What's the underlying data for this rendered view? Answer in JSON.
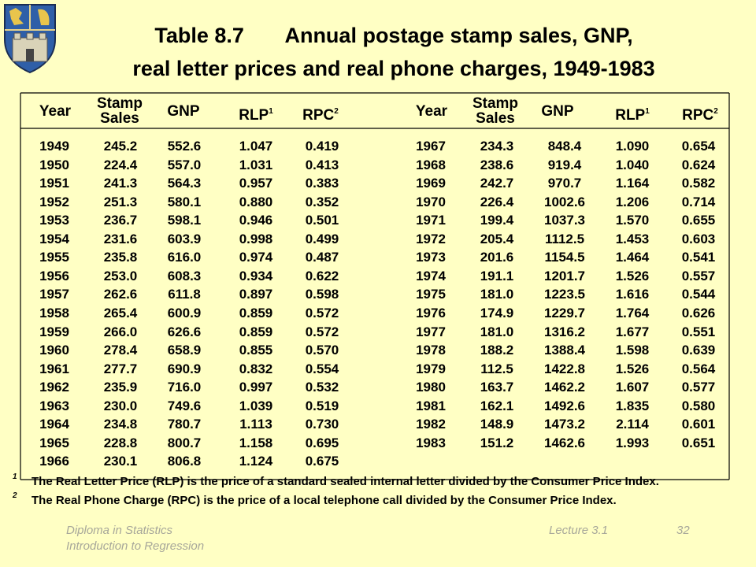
{
  "title_line1": "Table 8.7       Annual postage stamp sales, GNP,",
  "title_line2": "real letter prices and real phone charges, 1949-1983",
  "headers": {
    "year": "Year",
    "stamp1": "Stamp",
    "stamp2": "Sales",
    "gnp": "GNP",
    "rlp": "RLP",
    "rlp_sup": "1",
    "rpc": "RPC",
    "rpc_sup": "2"
  },
  "left_rows": [
    [
      "1949",
      "245.2",
      "552.6",
      "1.047",
      "0.419"
    ],
    [
      "1950",
      "224.4",
      "557.0",
      "1.031",
      "0.413"
    ],
    [
      "1951",
      "241.3",
      "564.3",
      "0.957",
      "0.383"
    ],
    [
      "1952",
      "251.3",
      "580.1",
      "0.880",
      "0.352"
    ],
    [
      "1953",
      "236.7",
      "598.1",
      "0.946",
      "0.501"
    ],
    [
      "1954",
      "231.6",
      "603.9",
      "0.998",
      "0.499"
    ],
    [
      "1955",
      "235.8",
      "616.0",
      "0.974",
      "0.487"
    ],
    [
      "1956",
      "253.0",
      "608.3",
      "0.934",
      "0.622"
    ],
    [
      "1957",
      "262.6",
      "611.8",
      "0.897",
      "0.598"
    ],
    [
      "1958",
      "265.4",
      "600.9",
      "0.859",
      "0.572"
    ],
    [
      "1959",
      "266.0",
      "626.6",
      "0.859",
      "0.572"
    ],
    [
      "1960",
      "278.4",
      "658.9",
      "0.855",
      "0.570"
    ],
    [
      "1961",
      "277.7",
      "690.9",
      "0.832",
      "0.554"
    ],
    [
      "1962",
      "235.9",
      "716.0",
      "0.997",
      "0.532"
    ],
    [
      "1963",
      "230.0",
      "749.6",
      "1.039",
      "0.519"
    ],
    [
      "1964",
      "234.8",
      "780.7",
      "1.113",
      "0.730"
    ],
    [
      "1965",
      "228.8",
      "800.7",
      "1.158",
      "0.695"
    ],
    [
      "1966",
      "230.1",
      "806.8",
      "1.124",
      "0.675"
    ]
  ],
  "right_rows": [
    [
      "1967",
      "234.3",
      "848.4",
      "1.090",
      "0.654"
    ],
    [
      "1968",
      "238.6",
      "919.4",
      "1.040",
      "0.624"
    ],
    [
      "1969",
      "242.7",
      "970.7",
      "1.164",
      "0.582"
    ],
    [
      "1970",
      "226.4",
      "1002.6",
      "1.206",
      "0.714"
    ],
    [
      "1971",
      "199.4",
      "1037.3",
      "1.570",
      "0.655"
    ],
    [
      "1972",
      "205.4",
      "1112.5",
      "1.453",
      "0.603"
    ],
    [
      "1973",
      "201.6",
      "1154.5",
      "1.464",
      "0.541"
    ],
    [
      "1974",
      "191.1",
      "1201.7",
      "1.526",
      "0.557"
    ],
    [
      "1975",
      "181.0",
      "1223.5",
      "1.616",
      "0.544"
    ],
    [
      "1976",
      "174.9",
      "1229.7",
      "1.764",
      "0.626"
    ],
    [
      "1977",
      "181.0",
      "1316.2",
      "1.677",
      "0.551"
    ],
    [
      "1978",
      "188.2",
      "1388.4",
      "1.598",
      "0.639"
    ],
    [
      "1979",
      "112.5",
      "1422.8",
      "1.526",
      "0.564"
    ],
    [
      "1980",
      "163.7",
      "1462.2",
      "1.607",
      "0.577"
    ],
    [
      "1981",
      "162.1",
      "1492.6",
      "1.835",
      "0.580"
    ],
    [
      "1982",
      "148.9",
      "1473.2",
      "2.114",
      "0.601"
    ],
    [
      "1983",
      "151.2",
      "1462.6",
      "1.993",
      "0.651"
    ]
  ],
  "footnotes": [
    {
      "mark": "1",
      "text": "The Real Letter Price (RLP) is the price of a standard sealed internal letter divided by the Consumer Price Index."
    },
    {
      "mark": "2",
      "text": "The Real Phone Charge (RPC) is the price of a local telephone call divided by the Consumer Price Index."
    }
  ],
  "footer": {
    "course_line1": "Diploma in Statistics",
    "course_line2": "Introduction to Regression",
    "lecture": "Lecture 3.1",
    "page": "32"
  },
  "colors": {
    "background": "#ffffc4",
    "footer_text": "#a7a79a"
  }
}
